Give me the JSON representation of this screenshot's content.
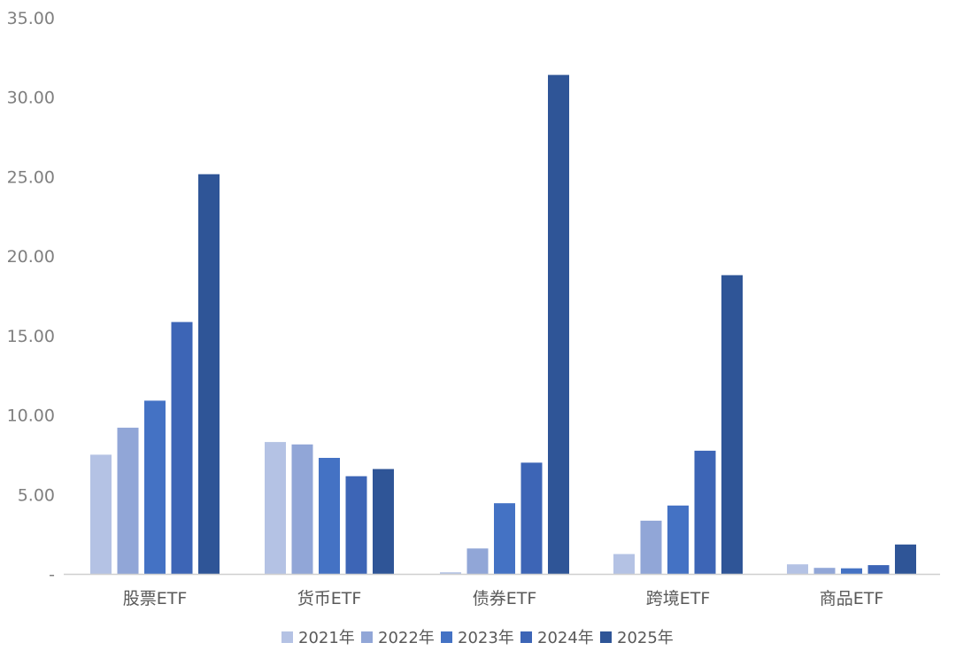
{
  "chart_data": {
    "type": "bar",
    "categories": [
      "股票ETF",
      "货币ETF",
      "债券ETF",
      "跨境ETF",
      "商品ETF"
    ],
    "series": [
      {
        "name": "2021年",
        "values": [
          7.5,
          8.3,
          0.1,
          1.25,
          0.6
        ],
        "color": "#b4c2e4"
      },
      {
        "name": "2022年",
        "values": [
          9.2,
          8.15,
          1.6,
          3.35,
          0.38
        ],
        "color": "#91a6d7"
      },
      {
        "name": "2023年",
        "values": [
          10.9,
          7.3,
          4.45,
          4.3,
          0.35
        ],
        "color": "#4472c4"
      },
      {
        "name": "2024年",
        "values": [
          15.85,
          6.15,
          7.0,
          7.75,
          0.55
        ],
        "color": "#3d65b6"
      },
      {
        "name": "2025年",
        "values": [
          25.15,
          6.6,
          31.4,
          18.8,
          1.85
        ],
        "color": "#2f5597"
      }
    ],
    "yticks": [
      "-",
      "5.00",
      "10.00",
      "15.00",
      "20.00",
      "25.00",
      "30.00",
      "35.00"
    ],
    "ylim": [
      0,
      35
    ],
    "grid": false,
    "legend_position": "bottom"
  }
}
